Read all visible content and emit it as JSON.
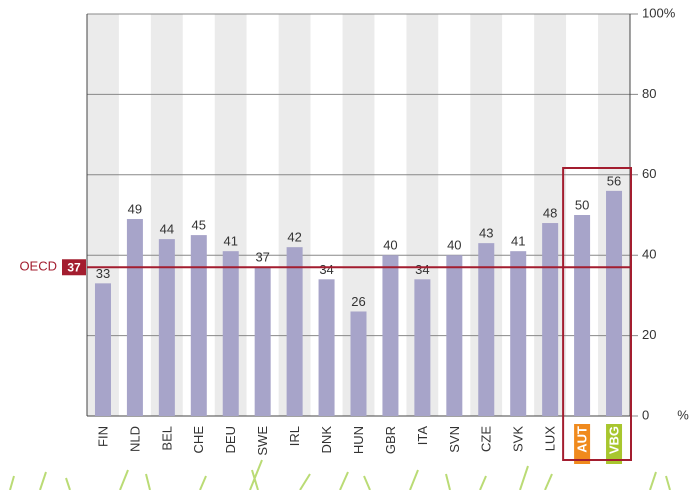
{
  "chart_data": {
    "type": "bar",
    "categories": [
      "FIN",
      "NLD",
      "BEL",
      "CHE",
      "DEU",
      "SWE",
      "IRL",
      "DNK",
      "HUN",
      "GBR",
      "ITA",
      "SVN",
      "CZE",
      "SVK",
      "LUX",
      "AUT",
      "VBG"
    ],
    "values": [
      33,
      49,
      44,
      45,
      41,
      37,
      42,
      34,
      26,
      40,
      34,
      40,
      43,
      41,
      48,
      50,
      56
    ],
    "color": "#a7a4c9",
    "ylim": [
      0,
      100
    ],
    "yticks": [
      0,
      20,
      40,
      60,
      80,
      {
        "value": 100,
        "label": "100%"
      }
    ],
    "y_unit": "%",
    "grid": true,
    "reference": {
      "label": "OECD",
      "value": 37,
      "color": "#a31d2f"
    },
    "label_backgrounds": {
      "AUT": "#f08a1d",
      "VBG": "#a8c62e"
    }
  }
}
